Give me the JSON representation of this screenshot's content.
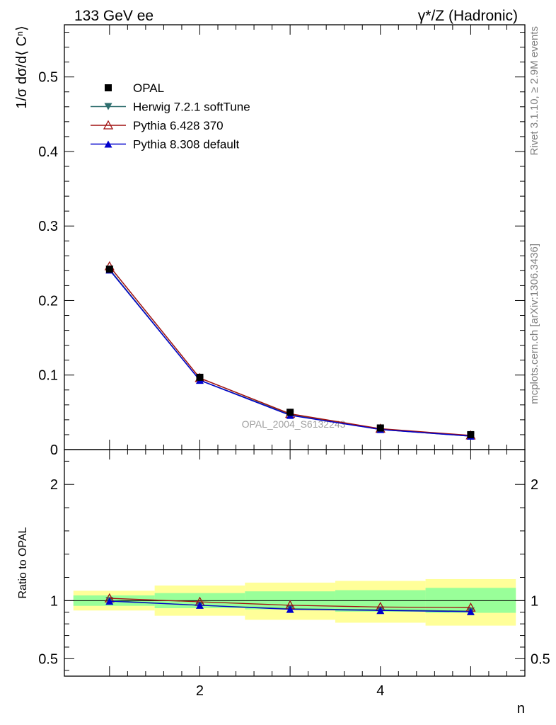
{
  "header": {
    "left": "133 GeV ee",
    "right": "γ*/Z (Hadronic)"
  },
  "side": {
    "rivet": "Rivet 3.1.10, ≥ 2.9M events",
    "mcplots": "mcplots.cern.ch [arXiv:1306.3436]"
  },
  "chart_data": [
    {
      "type": "line",
      "panel": "main",
      "ylabel": "1/σ dσ/d⟨ Cⁿ⟩",
      "xlabel": "n",
      "xlim": [
        0.5,
        5.6
      ],
      "ylim": [
        0,
        0.57
      ],
      "yticks": [
        0,
        0.1,
        0.2,
        0.3,
        0.4,
        0.5
      ],
      "ytick_labels": [
        "0",
        "0.1",
        "0.2",
        "0.3",
        "0.4",
        "0.5"
      ],
      "watermark": "OPAL_2004_S6132243",
      "legend_position": "top-left",
      "x": [
        1,
        2,
        3,
        4,
        5
      ],
      "series": [
        {
          "name": "OPAL",
          "color": "#000000",
          "marker": "square",
          "values": [
            0.242,
            0.097,
            0.05,
            0.029,
            0.02
          ]
        },
        {
          "name": "Herwig 7.2.1 softTune",
          "color": "#2e6e6e",
          "marker": "triangle-down",
          "values": [
            0.242,
            0.093,
            0.047,
            0.027,
            0.018
          ]
        },
        {
          "name": "Pythia 6.428 370",
          "color": "#a01010",
          "marker": "triangle-open",
          "values": [
            0.246,
            0.096,
            0.048,
            0.028,
            0.019
          ]
        },
        {
          "name": "Pythia 8.308 default",
          "color": "#0000cc",
          "marker": "triangle-up",
          "values": [
            0.241,
            0.093,
            0.046,
            0.027,
            0.018
          ]
        }
      ]
    },
    {
      "type": "line",
      "panel": "ratio",
      "ylabel": "Ratio to OPAL",
      "xlabel": "n",
      "xlim": [
        0.5,
        5.6
      ],
      "ylim": [
        0.35,
        2.3
      ],
      "yticks": [
        0.5,
        1,
        2
      ],
      "ytick_labels": [
        "0.5",
        "1",
        "2"
      ],
      "xticks": [
        2,
        4
      ],
      "xtick_labels": [
        "2",
        "4"
      ],
      "x": [
        1,
        2,
        3,
        4,
        5
      ],
      "bins": [
        [
          0.6,
          1.5
        ],
        [
          1.5,
          2.5
        ],
        [
          2.5,
          3.5
        ],
        [
          3.5,
          4.5
        ],
        [
          4.5,
          5.5
        ]
      ],
      "band_inner": [
        [
          0.955,
          1.045
        ],
        [
          0.935,
          1.065
        ],
        [
          0.925,
          1.08
        ],
        [
          0.905,
          1.09
        ],
        [
          0.895,
          1.11
        ]
      ],
      "band_outer": [
        [
          0.915,
          1.085
        ],
        [
          0.87,
          1.13
        ],
        [
          0.835,
          1.155
        ],
        [
          0.81,
          1.17
        ],
        [
          0.785,
          1.185
        ]
      ],
      "series": [
        {
          "name": "Herwig 7.2.1 softTune",
          "color": "#2e6e6e",
          "marker": "triangle-down",
          "values": [
            1.0,
            0.96,
            0.93,
            0.92,
            0.91
          ]
        },
        {
          "name": "Pythia 6.428 370",
          "color": "#a01010",
          "marker": "triangle-open",
          "values": [
            1.02,
            0.99,
            0.96,
            0.945,
            0.94
          ]
        },
        {
          "name": "Pythia 8.308 default",
          "color": "#0000cc",
          "marker": "triangle-up",
          "values": [
            0.995,
            0.96,
            0.925,
            0.915,
            0.905
          ]
        }
      ],
      "colors": {
        "inner_band": "#99ff99",
        "outer_band": "#ffff99"
      }
    }
  ]
}
